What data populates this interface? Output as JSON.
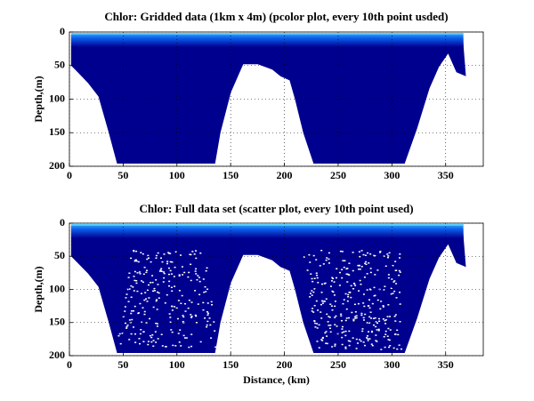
{
  "chart_data": [
    {
      "type": "pcolor",
      "title": "Chlor: Gridded data (1km x 4m) (pcolor plot, every 10th point usded)",
      "ylabel": "Depth,(m)",
      "xlim": [
        0,
        385
      ],
      "ylim": [
        0,
        200
      ],
      "y_reversed": true,
      "xticks": [
        0,
        50,
        100,
        150,
        200,
        250,
        300,
        350
      ],
      "yticks": [
        0,
        50,
        100,
        150,
        200
      ],
      "grid": true
    },
    {
      "type": "scatter",
      "title": "Chlor: Full data set (scatter plot, every 10th point used)",
      "xlabel": "Distance, (km)",
      "ylabel": "Depth,(m)",
      "xlim": [
        0,
        385
      ],
      "ylim": [
        0,
        200
      ],
      "y_reversed": true,
      "xticks": [
        0,
        50,
        100,
        150,
        200,
        250,
        300,
        350
      ],
      "yticks": [
        0,
        50,
        100,
        150,
        200
      ],
      "grid": true
    }
  ]
}
